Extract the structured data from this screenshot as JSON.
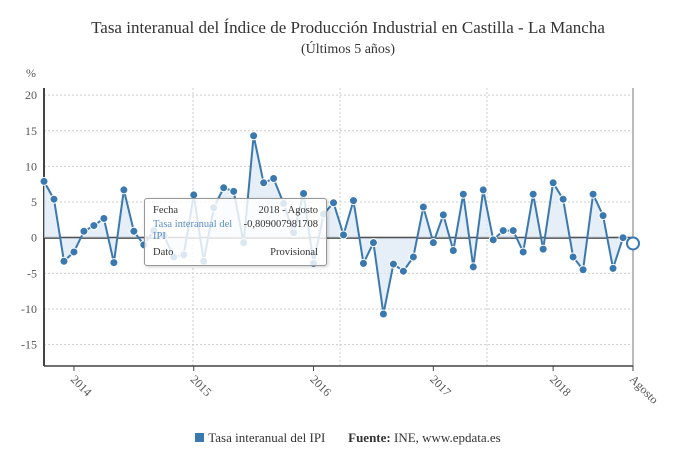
{
  "chart_data": {
    "type": "line",
    "title": "Tasa interanual del Índice de Producción Industrial en Castilla - La Mancha",
    "subtitle": "(Últimos 5 años)",
    "ylabel": "%",
    "ylim": [
      -18,
      21
    ],
    "yticks": [
      20,
      15,
      10,
      5,
      0,
      -5,
      -10,
      -15
    ],
    "xtick_labels": [
      {
        "index": 3,
        "label": "2014"
      },
      {
        "index": 15,
        "label": "2015"
      },
      {
        "index": 27,
        "label": "2016"
      },
      {
        "index": 39,
        "label": "2017"
      },
      {
        "index": 51,
        "label": "2018"
      },
      {
        "index": 59,
        "label": "Agosto"
      }
    ],
    "grid": true,
    "series": [
      {
        "name": "Tasa interanual del IPI",
        "color": "#3a78b0",
        "values": [
          7.9,
          5.4,
          -3.3,
          -2.0,
          0.9,
          1.7,
          2.7,
          -3.5,
          6.7,
          0.9,
          -1.0,
          1.0,
          0.3,
          -2.7,
          -2.4,
          6.0,
          -3.3,
          4.2,
          7.0,
          6.5,
          -0.7,
          14.3,
          7.7,
          8.3,
          4.8,
          0.7,
          6.2,
          -3.6,
          3.3,
          4.9,
          0.4,
          5.2,
          -3.6,
          -0.7,
          -10.7,
          -3.7,
          -4.7,
          -2.7,
          4.3,
          -0.7,
          3.2,
          -1.8,
          6.1,
          -4.1,
          6.7,
          -0.3,
          1.0,
          1.0,
          -2.0,
          6.1,
          -1.6,
          7.7,
          5.4,
          -2.7,
          -4.5,
          6.1,
          3.1,
          -4.3,
          0.0,
          -0.809007981708
        ]
      }
    ],
    "legend": "bottom-center"
  },
  "tooltip": {
    "fecha_label": "Fecha",
    "fecha_value": "2018 - Agosto",
    "series_label": "Tasa interanual del IPI",
    "series_value": "-0,809007981708",
    "dato_label": "Dato",
    "dato_value": "Provisional"
  },
  "footer": {
    "legend_label": "Tasa interanual del IPI",
    "source_label": "Fuente:",
    "source_value": "INE, www.epdata.es"
  }
}
